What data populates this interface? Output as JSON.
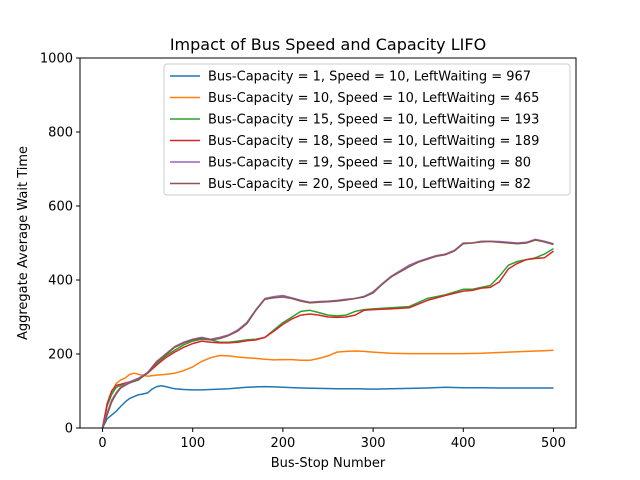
{
  "chart_data": {
    "type": "line",
    "title": "Impact of Bus Speed and Capacity LIFO",
    "xlabel": "Bus-Stop Number",
    "ylabel": "Aggregate Average Wait Time",
    "xlim": [
      -25,
      525
    ],
    "ylim": [
      0,
      1000
    ],
    "xticks": [
      0,
      100,
      200,
      300,
      400,
      500
    ],
    "yticks": [
      0,
      200,
      400,
      600,
      800,
      1000
    ],
    "grid": false,
    "legend_position": "top-right",
    "series": [
      {
        "name": "Bus-Capacity = 1, Speed = 10, LeftWaiting = 967",
        "color": "#1f77b4",
        "x": [
          0,
          5,
          10,
          15,
          20,
          25,
          30,
          35,
          40,
          45,
          50,
          55,
          60,
          65,
          70,
          80,
          90,
          100,
          110,
          120,
          130,
          140,
          150,
          160,
          170,
          180,
          190,
          200,
          220,
          240,
          260,
          280,
          300,
          320,
          340,
          360,
          380,
          400,
          420,
          440,
          460,
          480,
          500
        ],
        "y": [
          0,
          25,
          35,
          45,
          58,
          70,
          80,
          85,
          90,
          92,
          95,
          105,
          112,
          114,
          112,
          106,
          104,
          103,
          103,
          104,
          105,
          106,
          108,
          110,
          111,
          112,
          111,
          110,
          108,
          107,
          106,
          106,
          105,
          106,
          107,
          108,
          110,
          109,
          109,
          108,
          108,
          108,
          108
        ]
      },
      {
        "name": "Bus-Capacity = 10, Speed = 10, LeftWaiting = 465",
        "color": "#ff7f0e",
        "x": [
          0,
          5,
          10,
          15,
          20,
          25,
          30,
          35,
          40,
          50,
          60,
          70,
          80,
          90,
          100,
          110,
          120,
          130,
          140,
          150,
          160,
          170,
          180,
          190,
          200,
          210,
          220,
          230,
          240,
          250,
          260,
          270,
          280,
          290,
          300,
          320,
          340,
          360,
          380,
          400,
          420,
          440,
          460,
          480,
          490,
          500
        ],
        "y": [
          0,
          60,
          95,
          120,
          130,
          135,
          145,
          148,
          145,
          140,
          143,
          145,
          148,
          155,
          165,
          180,
          190,
          196,
          195,
          192,
          190,
          188,
          186,
          184,
          185,
          185,
          183,
          183,
          188,
          195,
          205,
          207,
          208,
          207,
          205,
          202,
          201,
          201,
          201,
          201,
          202,
          204,
          206,
          208,
          209,
          210
        ]
      },
      {
        "name": "Bus-Capacity = 15, Speed = 10, LeftWaiting = 193",
        "color": "#2ca02c",
        "x": [
          0,
          5,
          10,
          15,
          20,
          30,
          40,
          50,
          60,
          70,
          80,
          90,
          100,
          110,
          120,
          130,
          140,
          150,
          160,
          170,
          180,
          190,
          200,
          210,
          220,
          230,
          240,
          250,
          260,
          270,
          280,
          290,
          300,
          320,
          340,
          360,
          380,
          400,
          410,
          420,
          430,
          440,
          450,
          460,
          470,
          480,
          490,
          500
        ],
        "y": [
          0,
          60,
          90,
          110,
          115,
          122,
          130,
          150,
          175,
          195,
          210,
          225,
          235,
          240,
          238,
          232,
          232,
          235,
          238,
          240,
          245,
          265,
          285,
          300,
          315,
          318,
          312,
          305,
          303,
          305,
          315,
          320,
          322,
          325,
          328,
          350,
          360,
          375,
          375,
          380,
          385,
          410,
          440,
          450,
          455,
          460,
          470,
          485
        ]
      },
      {
        "name": "Bus-Capacity = 18, Speed = 10, LeftWaiting = 189",
        "color": "#d62728",
        "x": [
          0,
          5,
          10,
          15,
          20,
          30,
          40,
          50,
          60,
          70,
          80,
          90,
          100,
          110,
          120,
          130,
          140,
          150,
          160,
          170,
          180,
          190,
          200,
          210,
          220,
          230,
          240,
          250,
          260,
          270,
          280,
          290,
          300,
          320,
          340,
          360,
          380,
          400,
          410,
          420,
          430,
          440,
          450,
          460,
          470,
          480,
          490,
          500
        ],
        "y": [
          0,
          65,
          100,
          115,
          118,
          125,
          132,
          148,
          170,
          190,
          205,
          218,
          228,
          235,
          232,
          230,
          230,
          232,
          236,
          238,
          245,
          262,
          280,
          295,
          305,
          308,
          305,
          300,
          299,
          300,
          305,
          318,
          320,
          322,
          325,
          345,
          358,
          370,
          372,
          378,
          380,
          395,
          430,
          445,
          455,
          458,
          460,
          478
        ]
      },
      {
        "name": "Bus-Capacity = 19, Speed = 10, LeftWaiting = 80",
        "color": "#9467bd",
        "x": [
          0,
          5,
          10,
          15,
          20,
          30,
          40,
          50,
          60,
          70,
          80,
          90,
          100,
          110,
          120,
          130,
          140,
          150,
          160,
          170,
          180,
          190,
          200,
          210,
          220,
          230,
          240,
          250,
          260,
          270,
          280,
          290,
          300,
          310,
          320,
          330,
          340,
          350,
          360,
          370,
          380,
          390,
          400,
          410,
          420,
          430,
          440,
          450,
          460,
          470,
          480,
          490,
          500
        ],
        "y": [
          0,
          40,
          75,
          95,
          110,
          125,
          135,
          150,
          180,
          200,
          220,
          232,
          240,
          245,
          240,
          245,
          252,
          265,
          285,
          320,
          350,
          355,
          358,
          352,
          345,
          340,
          342,
          343,
          345,
          348,
          350,
          356,
          368,
          390,
          410,
          425,
          440,
          450,
          458,
          466,
          470,
          480,
          500,
          500,
          505,
          505,
          504,
          502,
          500,
          502,
          510,
          505,
          498
        ]
      },
      {
        "name": "Bus-Capacity = 20, Speed = 10, LeftWaiting = 82",
        "color": "#8c564b",
        "x": [
          0,
          5,
          10,
          15,
          20,
          30,
          40,
          50,
          60,
          70,
          80,
          90,
          100,
          110,
          120,
          130,
          140,
          150,
          160,
          170,
          180,
          190,
          200,
          210,
          220,
          230,
          240,
          250,
          260,
          270,
          280,
          290,
          300,
          310,
          320,
          330,
          340,
          350,
          360,
          370,
          380,
          390,
          400,
          410,
          420,
          430,
          440,
          450,
          460,
          470,
          480,
          490,
          500
        ],
        "y": [
          0,
          35,
          70,
          92,
          108,
          122,
          132,
          148,
          178,
          198,
          218,
          230,
          238,
          243,
          238,
          242,
          250,
          262,
          282,
          318,
          348,
          352,
          354,
          350,
          343,
          338,
          340,
          341,
          343,
          346,
          350,
          354,
          365,
          388,
          408,
          422,
          436,
          448,
          456,
          464,
          468,
          478,
          498,
          500,
          503,
          504,
          502,
          500,
          498,
          500,
          508,
          503,
          496
        ]
      }
    ]
  }
}
